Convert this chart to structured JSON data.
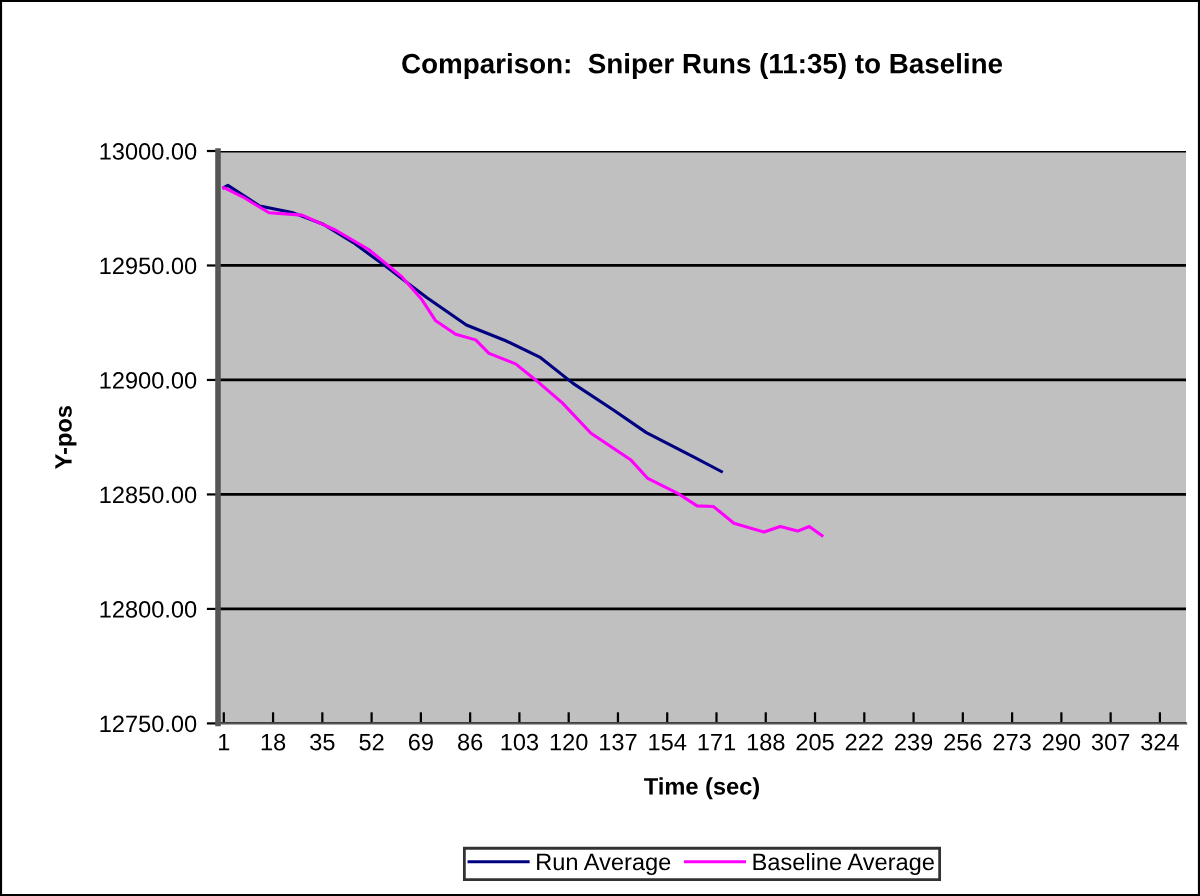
{
  "chart_data": {
    "type": "line",
    "title": "Comparison:  Sniper Runs (11:35) to Baseline",
    "xlabel": "Time (sec)",
    "ylabel": "Y-pos",
    "xlim": [
      -1,
      333
    ],
    "xticks": [
      1,
      18,
      35,
      52,
      69,
      86,
      103,
      120,
      137,
      154,
      171,
      188,
      205,
      222,
      239,
      256,
      273,
      290,
      307,
      324
    ],
    "ylim": [
      12750,
      13000
    ],
    "yticks": [
      {
        "value": 12750,
        "label": "12750.00"
      },
      {
        "value": 12800,
        "label": "12800.00"
      },
      {
        "value": 12850,
        "label": "12850.00"
      },
      {
        "value": 12900,
        "label": "12900.00"
      },
      {
        "value": 12950,
        "label": "12950.00"
      },
      {
        "value": 13000,
        "label": "13000.00"
      }
    ],
    "grid": "y",
    "legend": "bottom",
    "marker": "none",
    "line_style": "solid",
    "series": [
      {
        "name": "Run Average",
        "color": "#000080",
        "x": [
          1,
          2.4,
          13.4,
          25,
          35.3,
          45.7,
          57,
          71,
          84.7,
          98.5,
          110,
          121.5,
          135.3,
          146.8,
          162.9,
          172.7
        ],
        "values": [
          12984,
          12985,
          12976,
          12973,
          12968,
          12960,
          12949.5,
          12936,
          12924,
          12917,
          12910,
          12898.5,
          12887,
          12877,
          12866.5,
          12860
        ]
      },
      {
        "name": "Baseline Average",
        "color": "#ff00ff",
        "x": [
          1,
          7.5,
          16.6,
          28,
          39.5,
          51,
          62.5,
          69.4,
          74,
          81,
          87.9,
          92.5,
          101.7,
          108.6,
          117.8,
          127.7,
          141.5,
          147.3,
          157.6,
          164.3,
          170,
          177,
          187.4,
          193,
          199,
          203,
          207.4
        ],
        "values": [
          12984,
          12980,
          12973,
          12972,
          12965.5,
          12957,
          12945,
          12935,
          12926,
          12920,
          12917.5,
          12911.6,
          12907,
          12900,
          12890,
          12876.7,
          12865,
          12857,
          12850.5,
          12845,
          12844.7,
          12837.4,
          12833.6,
          12836,
          12834,
          12836,
          12832
        ]
      }
    ]
  }
}
